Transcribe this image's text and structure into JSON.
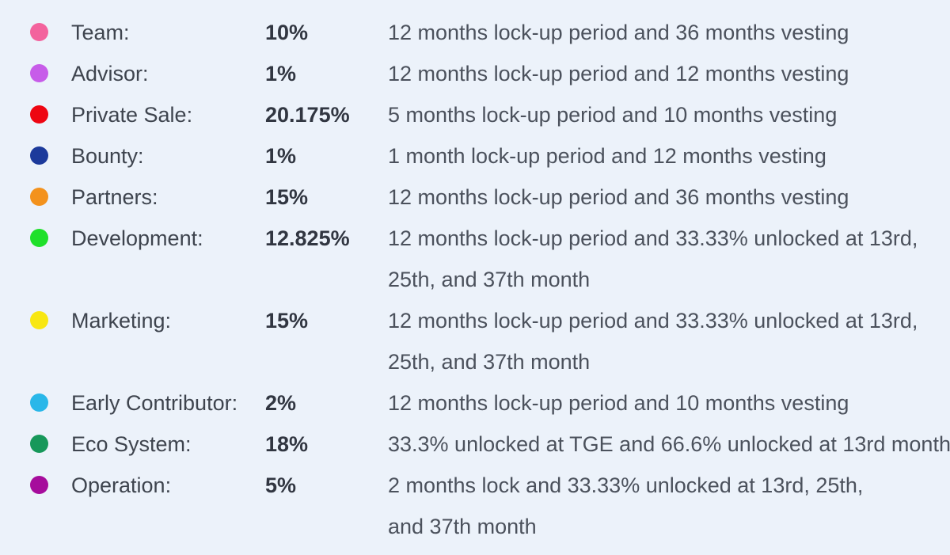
{
  "page": {
    "background_color": "#ECF2FA",
    "label_text_color": "#3E444E",
    "percent_text_color": "#313641",
    "description_text_color": "#4B515C"
  },
  "chart_data": {
    "type": "table",
    "title": "Token allocation and vesting schedule (legend)",
    "categories": [
      "Team",
      "Advisor",
      "Private Sale",
      "Bounty",
      "Partners",
      "Development",
      "Marketing",
      "Early Contributor",
      "Eco System",
      "Operation"
    ],
    "values": [
      10,
      1,
      20.175,
      1,
      15,
      12.825,
      15,
      2,
      18,
      5
    ],
    "colors": [
      "#F3639D",
      "#C75CE9",
      "#EE0612",
      "#1C3A9B",
      "#F3921D",
      "#1FE02A",
      "#F8E712",
      "#29B7E9",
      "#17985A",
      "#A60C9C"
    ],
    "notes": [
      "12 months lock-up period and 36 months vesting",
      "12 months lock-up period and 12 months vesting",
      "5 months lock-up period and 10 months vesting",
      "1 month lock-up period and 12 months vesting",
      "12 months lock-up period and 36 months vesting",
      "12 months lock-up period and 33.33% unlocked at 13rd, 25th, and 37th month",
      "12 months lock-up period and 33.33% unlocked at 13rd, 25th, and 37th month",
      "12 months lock-up period and 10 months vesting",
      "33.3% unlocked at TGE and 66.6% unlocked at 13rd month",
      "2 months lock and 33.33% unlocked at 13rd, 25th, and 37th month"
    ]
  },
  "rows": [
    {
      "label": "Team:",
      "percent": "10%",
      "color": "#F3639D",
      "description": [
        "12 months lock-up period and 36 months vesting"
      ]
    },
    {
      "label": "Advisor:",
      "percent": "1%",
      "color": "#C75CE9",
      "description": [
        "12 months lock-up period and 12 months vesting"
      ]
    },
    {
      "label": "Private Sale:",
      "percent": "20.175%",
      "color": "#EE0612",
      "description": [
        "5 months lock-up period and 10 months vesting"
      ]
    },
    {
      "label": "Bounty:",
      "percent": "1%",
      "color": "#1C3A9B",
      "description": [
        "1 month lock-up period and 12 months vesting"
      ]
    },
    {
      "label": "Partners:",
      "percent": "15%",
      "color": "#F3921D",
      "description": [
        "12 months lock-up period and 36 months vesting"
      ]
    },
    {
      "label": "Development:",
      "percent": "12.825%",
      "color": "#1FE02A",
      "description": [
        "12 months lock-up period and 33.33% unlocked at 13rd,",
        "25th, and 37th month"
      ]
    },
    {
      "label": "Marketing:",
      "percent": "15%",
      "color": "#F8E712",
      "description": [
        "12 months lock-up period and 33.33% unlocked at 13rd,",
        "25th, and 37th month"
      ]
    },
    {
      "label": "Early Contributor:",
      "percent": "2%",
      "color": "#29B7E9",
      "description": [
        "12 months lock-up period and 10 months vesting"
      ]
    },
    {
      "label": "Eco System:",
      "percent": "18%",
      "color": "#17985A",
      "description": [
        "33.3% unlocked at TGE and 66.6% unlocked at 13rd month"
      ]
    },
    {
      "label": "Operation:",
      "percent": "5%",
      "color": "#A60C9C",
      "description": [
        "2 months lock and 33.33% unlocked at 13rd, 25th,",
        "and 37th month"
      ]
    }
  ]
}
